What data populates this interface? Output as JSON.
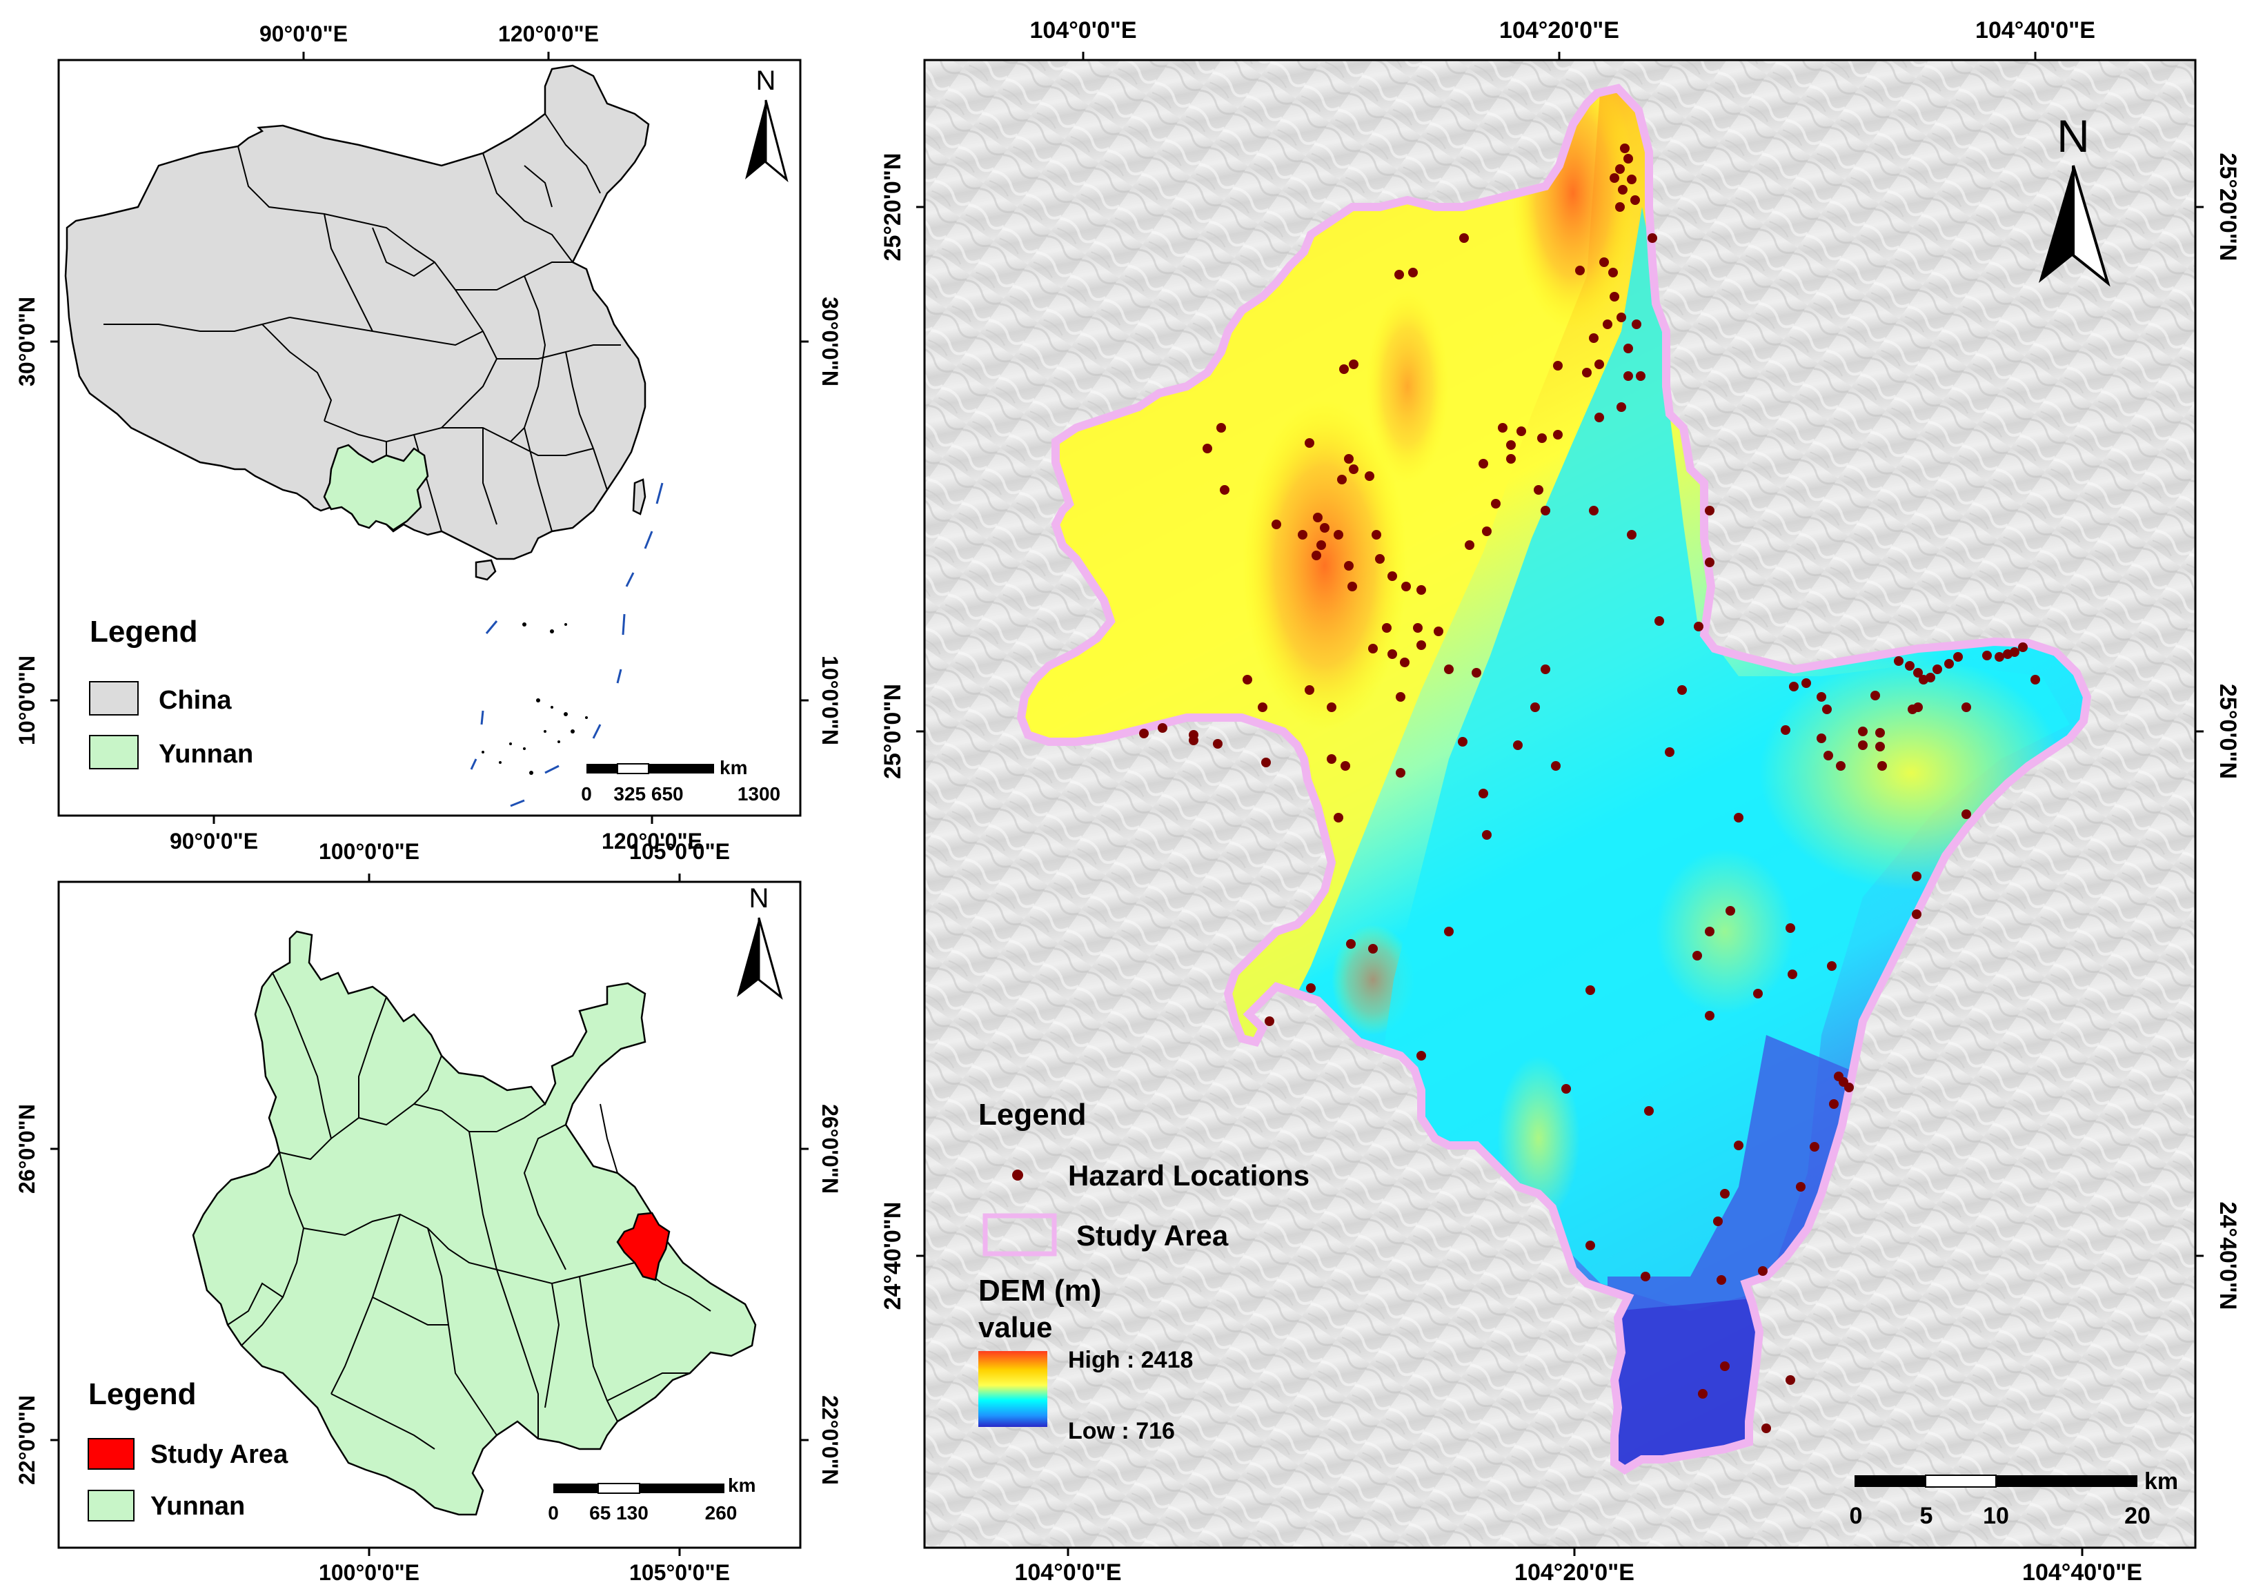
{
  "colors": {
    "china_fill": "#dcdcdc",
    "yunnan_fill": "#c8f5c8",
    "study_area_fill": "#ff0000",
    "hazard_point": "#7a0000",
    "study_area_outline": "#f0b4f0",
    "dem_high": "#ff3c1e",
    "dem_mid": "#ffff00",
    "dem_low_mid": "#00ffff",
    "dem_low": "#2828c8",
    "sea_dash": "#1e50b4"
  },
  "panel_china": {
    "north_label": "N",
    "top_ticks": [
      "90°0'0\"E",
      "120°0'0\"E"
    ],
    "bottom_ticks": [
      "90°0'0\"E",
      "120°0'0\"E"
    ],
    "left_ticks": [
      "30°0'0\"N",
      "10°0'0\"N"
    ],
    "right_ticks": [
      "30°0'0\"N",
      "10°0'0\"N"
    ],
    "legend_title": "Legend",
    "legend_items": [
      {
        "label": "China",
        "color": "#dcdcdc"
      },
      {
        "label": "Yunnan",
        "color": "#c8f5c8"
      }
    ],
    "scale_unit": "km",
    "scale_labels": [
      "0",
      "325 650",
      "1300"
    ]
  },
  "panel_yunnan": {
    "north_label": "N",
    "top_ticks": [
      "100°0'0\"E",
      "105°0'0\"E"
    ],
    "bottom_ticks": [
      "100°0'0\"E",
      "105°0'0\"E"
    ],
    "left_ticks": [
      "26°0'0\"N",
      "22°0'0\"N"
    ],
    "right_ticks": [
      "26°0'0\"N",
      "22°0'0\"N"
    ],
    "legend_title": "Legend",
    "legend_items": [
      {
        "label": "Study Area",
        "color": "#ff0000"
      },
      {
        "label": "Yunnan",
        "color": "#c8f5c8"
      }
    ],
    "scale_unit": "km",
    "scale_labels": [
      "0",
      "65 130",
      "260"
    ]
  },
  "panel_study": {
    "north_label": "N",
    "top_ticks": [
      "104°0'0\"E",
      "104°20'0\"E",
      "104°40'0\"E"
    ],
    "bottom_ticks": [
      "104°0'0\"E",
      "104°20'0\"E",
      "104°40'0\"E"
    ],
    "left_ticks": [
      "25°20'0\"N",
      "25°0'0\"N",
      "24°40'0\"N"
    ],
    "right_ticks": [
      "25°20'0\"N",
      "25°0'0\"N",
      "24°40'0\"N"
    ],
    "legend_title": "Legend",
    "legend_hazard": "Hazard Locations",
    "legend_study": "Study Area",
    "dem_title": "DEM (m)",
    "dem_subtitle": "value",
    "dem_high": "High : 2418",
    "dem_low": "Low : 716",
    "scale_unit": "km",
    "scale_labels": [
      "0",
      "5",
      "10",
      "20"
    ]
  }
}
